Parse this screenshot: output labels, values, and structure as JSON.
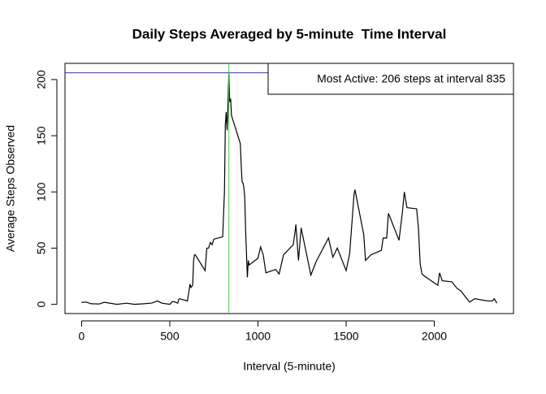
{
  "chart_data": {
    "type": "line",
    "title": "Daily Steps Averaged by 5-minute  Time Interval",
    "x_label": "Interval (5-minute)",
    "y_label": "Average Steps Observed",
    "x": [
      0,
      25,
      55,
      100,
      130,
      200,
      255,
      300,
      355,
      400,
      430,
      455,
      500,
      515,
      530,
      545,
      550,
      555,
      600,
      615,
      620,
      625,
      630,
      635,
      640,
      645,
      700,
      710,
      720,
      730,
      740,
      750,
      800,
      810,
      815,
      820,
      825,
      830,
      835,
      840,
      845,
      850,
      900,
      905,
      910,
      915,
      920,
      925,
      930,
      935,
      940,
      945,
      950,
      1000,
      1015,
      1030,
      1045,
      1100,
      1120,
      1145,
      1200,
      1210,
      1215,
      1230,
      1245,
      1300,
      1330,
      1400,
      1425,
      1450,
      1500,
      1520,
      1545,
      1550,
      1600,
      1610,
      1640,
      1700,
      1710,
      1730,
      1740,
      1800,
      1820,
      1830,
      1845,
      1900,
      1910,
      1920,
      1930,
      1945,
      2000,
      2020,
      2030,
      2045,
      2100,
      2130,
      2150,
      2200,
      2230,
      2300,
      2330,
      2340,
      2355
    ],
    "series": [
      {
        "color": "#000000",
        "values": [
          1.7,
          2,
          0.5,
          0.3,
          1.8,
          0,
          1,
          0,
          0.5,
          1.2,
          3,
          1,
          0,
          2.5,
          2,
          1,
          4,
          5,
          3,
          18,
          15,
          16,
          17,
          39,
          44,
          44,
          30,
          50,
          50,
          55,
          53,
          58,
          60,
          100,
          160,
          171,
          155,
          177,
          206,
          180,
          183,
          168,
          143,
          124,
          109,
          108,
          104,
          96,
          66,
          45,
          24,
          39,
          35,
          41,
          51,
          44,
          28,
          31,
          27,
          44,
          53,
          64,
          71,
          39,
          68,
          26,
          38,
          59,
          42,
          50,
          30,
          45,
          98,
          102,
          62,
          39,
          44,
          48,
          59,
          59,
          81,
          57,
          83,
          100,
          86,
          85,
          68,
          36,
          27,
          25,
          19,
          17,
          28,
          21,
          20,
          14,
          12,
          2,
          5,
          3,
          3,
          5,
          1
        ]
      }
    ],
    "xlim": [
      -94.2,
      2449.2
    ],
    "ylim": [
      -8.25,
      214.4
    ],
    "xticks": [
      0,
      500,
      1000,
      1500,
      2000
    ],
    "yticks": [
      0,
      50,
      100,
      150,
      200
    ],
    "reference_lines": {
      "h": 206,
      "h_color": "#3333cc",
      "v": 835,
      "v_color": "#33dd33"
    },
    "legend_text": "Most Active: 206 steps at interval 835",
    "legend_position": "topright"
  }
}
